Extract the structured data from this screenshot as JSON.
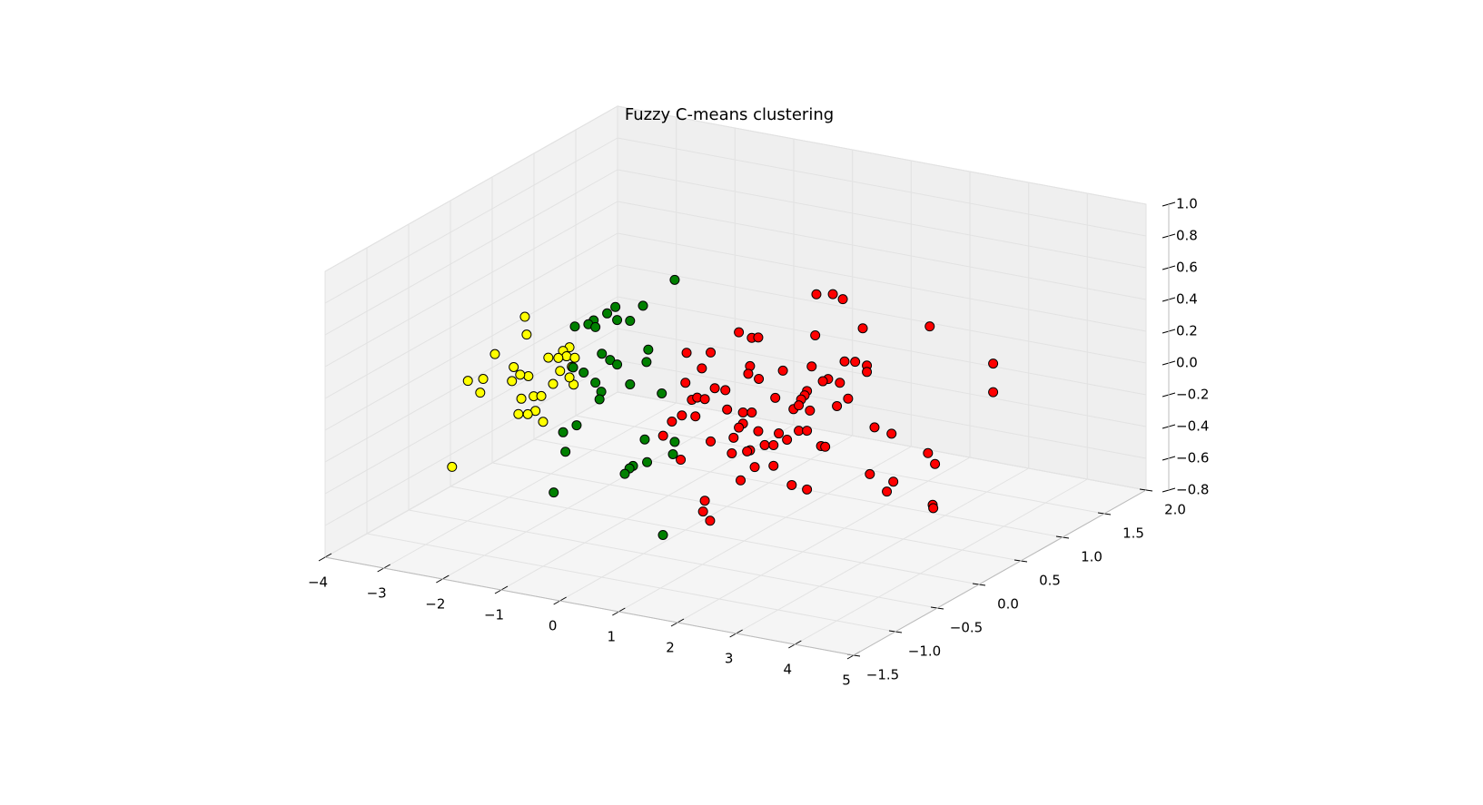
{
  "chart_data": {
    "type": "scatter3d",
    "title": "Fuzzy C-means clustering",
    "xlim": [
      -4,
      5
    ],
    "ylim": [
      -1.5,
      2
    ],
    "zlim": [
      -0.8,
      1
    ],
    "xticks": [
      {
        "value": -4,
        "label": "−4"
      },
      {
        "value": -3,
        "label": "−3"
      },
      {
        "value": -2,
        "label": "−2"
      },
      {
        "value": -1,
        "label": "−1"
      },
      0,
      1,
      2,
      3,
      4,
      5
    ],
    "yticks": [
      {
        "value": -1.5,
        "label": "−1.5"
      },
      {
        "value": -1,
        "label": "−1.0"
      },
      {
        "value": -0.5,
        "label": "−0.5"
      },
      {
        "value": 0,
        "label": "0.0"
      },
      0.5,
      {
        "value": 1,
        "label": "1.0"
      },
      1.5,
      {
        "value": 2,
        "label": "2.0"
      }
    ],
    "zticks": [
      {
        "value": -0.8,
        "label": "−0.8"
      },
      {
        "value": -0.6,
        "label": "−0.6"
      },
      {
        "value": -0.4,
        "label": "−0.4"
      },
      {
        "value": -0.2,
        "label": "−0.2"
      },
      {
        "value": 0,
        "label": "0.0"
      },
      0.2,
      0.4,
      0.6,
      0.8,
      {
        "value": 1,
        "label": "1.0"
      }
    ],
    "grid": true,
    "series": [
      {
        "color": "#ffff00",
        "x": [
          -1.31,
          -1.28,
          -1.82,
          -0.55,
          -0.66,
          -0.6,
          -0.91,
          -0.74,
          -0.46,
          -1.5,
          -1.25,
          -1.39,
          -0.51,
          -0.71,
          -2.28,
          -2.02,
          -1.53,
          -0.83,
          -0.48,
          -0.55,
          -2.07,
          -1.16,
          -1.37,
          -1.03,
          -1.13,
          -1.26,
          -1.42,
          -1.0,
          -2.55
        ],
        "y": [
          -1,
          -1,
          -1,
          -1,
          -1,
          -1,
          -1,
          -1,
          -1,
          -1,
          -1,
          -1,
          -1,
          -1,
          -1,
          -1,
          -1,
          -1,
          -1,
          -1,
          -1,
          -1,
          -1,
          -1,
          -1,
          -1,
          -1,
          -1,
          -1
        ],
        "z": [
          0.75,
          0.64,
          0.48,
          0.61,
          0.58,
          0.55,
          0.52,
          0.53,
          0.55,
          0.42,
          0.38,
          0.38,
          0.49,
          0.45,
          0.28,
          0.31,
          0.33,
          0.36,
          0.38,
          0.42,
          0.22,
          0.26,
          0.23,
          0.27,
          0.17,
          0.14,
          0.13,
          0.11,
          -0.28
        ]
      },
      {
        "color": "#008000",
        "x": [
          0.53,
          -0.01,
          -0.48,
          -0.62,
          -0.85,
          -1.17,
          -0.94,
          -0.82,
          -0.45,
          -0.23,
          0.08,
          0.05,
          -0.71,
          -0.57,
          -0.45,
          -1.02,
          -1.2,
          -0.23,
          -0.82,
          -0.72,
          -0.75,
          0.31,
          -1.14,
          -1.37,
          0.53,
          0.02,
          -1.33,
          0.5,
          0.06,
          -0.18,
          -0.24,
          -0.32,
          -1.53,
          0.33
        ],
        "y": [
          -0.5,
          -0.5,
          -0.5,
          -0.5,
          -0.5,
          -0.5,
          -0.5,
          -0.5,
          -0.5,
          -0.5,
          -0.5,
          -0.5,
          -0.5,
          -0.5,
          -0.5,
          -0.5,
          -0.5,
          -0.5,
          -0.5,
          -0.5,
          -0.5,
          -0.5,
          -0.5,
          -0.5,
          -0.5,
          -0.5,
          -0.5,
          -0.5,
          -0.5,
          -0.5,
          -0.5,
          -0.5,
          -0.5,
          -0.5
        ],
        "z": [
          0.96,
          0.76,
          0.72,
          0.67,
          0.61,
          0.55,
          0.58,
          0.57,
          0.64,
          0.65,
          0.49,
          0.41,
          0.41,
          0.38,
          0.36,
          0.27,
          0.29,
          0.25,
          0.22,
          0.17,
          0.12,
          0.23,
          -0.07,
          -0.13,
          -0.06,
          -0.08,
          -0.25,
          -0.14,
          -0.22,
          -0.26,
          -0.28,
          -0.32,
          -0.52,
          -0.66
        ]
      },
      {
        "color": "#ff0000",
        "x": [
          1.52,
          1.8,
          1.97,
          3.45,
          2.31,
          0.2,
          0.42,
          0.53,
          1.5,
          -0.69,
          -0.28,
          4.53,
          2.0,
          2.18,
          2.38,
          2.38,
          -0.43,
          0.39,
          0.95,
          1.44,
          0.36,
          0.54,
          -0.71,
          1.72,
          1.63,
          1.92,
          -0.21,
          -0.03,
          1.36,
          1.32,
          1.26,
          -0.6,
          -0.51,
          -0.38,
          0.82,
          2.06,
          4.53,
          0.0,
          0.27,
          0.42,
          1.13,
          1.41,
          1.22,
          1.87,
          -0.77,
          -0.54,
          -0.94,
          0.27,
          0.2,
          2.51,
          2.8,
          0.88,
          1.22,
          1.36,
          0.53,
          -1.09,
          0.11,
          1.02,
          -0.28,
          0.64,
          0.79,
          1.6,
          1.67,
          0.39,
          0.34,
          0.08,
          3.42,
          -0.79,
          0.79,
          0.47,
          3.54,
          2.43,
          2.83,
          0.23,
          1.1,
          1.36,
          2.72,
          3.5,
          3.51,
          -0.38,
          -0.41,
          -0.29
        ],
        "y": [
          0.5,
          0.5,
          0.5,
          0.5,
          0.5,
          0.5,
          0.5,
          0.5,
          0.5,
          0.5,
          0.5,
          0.5,
          0.5,
          0.5,
          0.5,
          0.5,
          0.5,
          0.5,
          0.5,
          0.5,
          0.5,
          0.5,
          0.5,
          0.5,
          0.5,
          0.5,
          0.5,
          0.5,
          0.5,
          0.5,
          0.5,
          0.5,
          0.5,
          0.5,
          0.5,
          0.5,
          0.5,
          0.5,
          0.5,
          0.5,
          0.5,
          0.5,
          0.5,
          0.5,
          0.5,
          0.5,
          0.5,
          0.5,
          0.5,
          0.5,
          0.5,
          0.5,
          0.5,
          0.5,
          0.5,
          0.5,
          0.5,
          0.5,
          0.5,
          0.5,
          0.5,
          0.5,
          0.5,
          0.5,
          0.5,
          0.5,
          0.5,
          0.5,
          0.5,
          0.5,
          0.5,
          0.5,
          0.5,
          0.5,
          0.5,
          0.5,
          0.5,
          0.5,
          0.5,
          0.5,
          0.5,
          0.5
        ],
        "z": [
          0.64,
          0.66,
          0.64,
          0.57,
          0.48,
          0.31,
          0.29,
          0.3,
          0.38,
          0.12,
          0.15,
          0.41,
          0.25,
          0.26,
          0.25,
          0.21,
          0.04,
          0.11,
          0.12,
          0.18,
          0.06,
          0.04,
          -0.07,
          0.12,
          0.1,
          0.11,
          -0.07,
          -0.07,
          0.02,
          -0.01,
          -0.04,
          -0.17,
          -0.15,
          -0.15,
          -0.06,
          0.02,
          0.23,
          -0.19,
          -0.19,
          -0.18,
          -0.11,
          -0.1,
          -0.08,
          -0.04,
          -0.28,
          -0.27,
          -0.33,
          -0.26,
          -0.29,
          -0.13,
          -0.15,
          -0.28,
          -0.24,
          -0.23,
          -0.29,
          -0.43,
          -0.36,
          -0.31,
          -0.41,
          -0.37,
          -0.36,
          -0.31,
          -0.31,
          -0.42,
          -0.43,
          -0.46,
          -0.23,
          -0.56,
          -0.49,
          -0.52,
          -0.29,
          -0.43,
          -0.45,
          -0.62,
          -0.59,
          -0.6,
          -0.52,
          -0.55,
          -0.57,
          -0.79,
          -0.86,
          -0.91
        ]
      }
    ]
  }
}
